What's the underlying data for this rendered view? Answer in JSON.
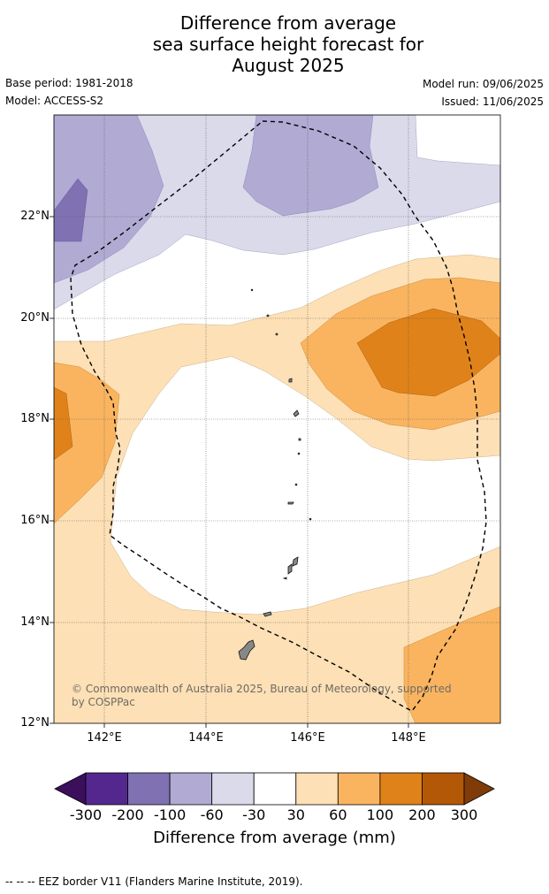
{
  "title_lines": [
    "Difference from average",
    "sea surface height forecast for",
    "August 2025"
  ],
  "base_period": "Base period: 1981-2018",
  "model": "Model: ACCESS-S2",
  "model_run": "Model run: 09/06/2025",
  "issued": "Issued: 11/06/2025",
  "lat_labels": [
    "22°N",
    "20°N",
    "18°N",
    "16°N",
    "14°N",
    "12°N"
  ],
  "lon_labels": [
    "142°E",
    "144°E",
    "146°E",
    "148°E"
  ],
  "credit": "© Commonwealth of Australia 2025, Bureau of Meteorology, supported by COSPPac",
  "colorbar": {
    "ticks": [
      "-300",
      "-200",
      "-100",
      "-60",
      "-30",
      "30",
      "60",
      "100",
      "200",
      "300"
    ],
    "label": "Difference from average (mm)",
    "colors": [
      "#3b0f5c",
      "#54278f",
      "#8071b2",
      "#b1aad3",
      "#dadaeb",
      "#ffffff",
      "#fde0b5",
      "#fab45f",
      "#e0821a",
      "#b35806",
      "#7f3b08"
    ]
  },
  "footer": "--  --  -- EEZ border V11 (Flanders Marine Institute, 2019)."
}
